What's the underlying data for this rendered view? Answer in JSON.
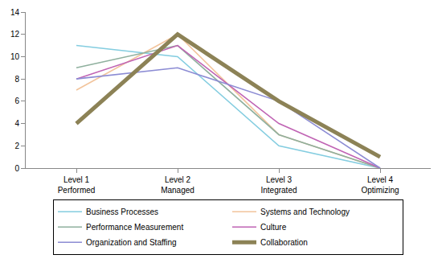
{
  "chart_data": {
    "type": "line",
    "categories": [
      "Level 1\nPerformed",
      "Level 2\nManaged",
      "Level 3\nIntegrated",
      "Level 4\nOptimizing"
    ],
    "series": [
      {
        "name": "Business Processes",
        "color": "#84cde0",
        "values": [
          11,
          10,
          2,
          0
        ]
      },
      {
        "name": "Systems and Technology",
        "color": "#f2c49c",
        "values": [
          7,
          12,
          3,
          0
        ]
      },
      {
        "name": "Performance Measurement",
        "color": "#8fb09e",
        "values": [
          9,
          11,
          3,
          0
        ]
      },
      {
        "name": "Culture",
        "color": "#c064b4",
        "values": [
          8,
          11,
          4,
          0
        ]
      },
      {
        "name": "Organization and Staffing",
        "color": "#8c8cd4",
        "values": [
          8,
          9,
          6,
          0
        ]
      },
      {
        "name": "Collaboration",
        "color": "#8c8256",
        "values": [
          4,
          12,
          6,
          1
        ]
      }
    ],
    "ylim": [
      0,
      14
    ],
    "yticks": [
      0,
      2,
      4,
      6,
      8,
      10,
      12,
      14
    ],
    "grid": false,
    "legend": "bottom"
  }
}
